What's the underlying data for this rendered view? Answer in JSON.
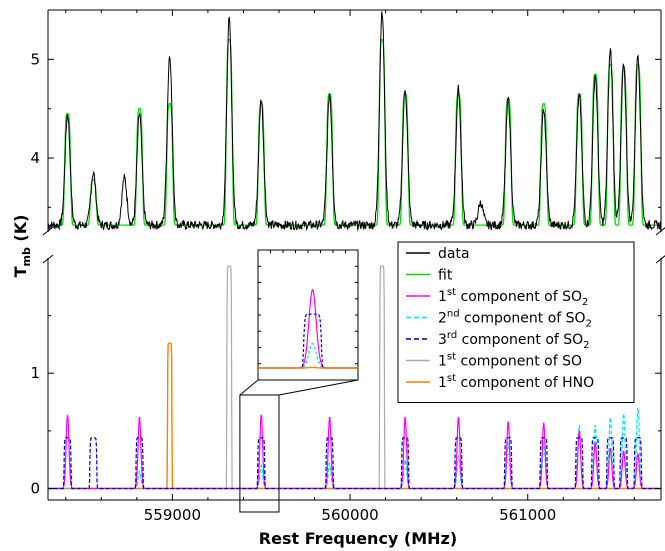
{
  "chart_data": {
    "type": "line",
    "title": "",
    "xlabel": "Rest Frequency (MHz)",
    "ylabel": "T_mb (K)",
    "xlim": [
      558300,
      561750
    ],
    "x_ticks": [
      559000,
      560000,
      561000
    ],
    "x_tick_labels": [
      "559000",
      "560000",
      "561000"
    ],
    "broken_y_axis": true,
    "upper_panel": {
      "ylim": [
        3.25,
        5.5
      ],
      "y_ticks": [
        4,
        5
      ],
      "y_tick_labels": [
        "4",
        "5"
      ]
    },
    "lower_panel": {
      "ylim": [
        -0.1,
        2.0
      ],
      "y_ticks": [
        0,
        1
      ],
      "y_tick_labels": [
        "0",
        "1"
      ]
    },
    "legend": {
      "position": "right",
      "entries": [
        {
          "label": "data",
          "color": "#000000",
          "dash": "solid"
        },
        {
          "label": "fit",
          "color": "#00dd00",
          "dash": "solid"
        },
        {
          "label_main": "1",
          "label_sup": "st",
          "label_rest": " component of SO",
          "label_sub": "2",
          "color": "#ff00ff",
          "dash": "solid"
        },
        {
          "label_main": "2",
          "label_sup": "nd",
          "label_rest": " component of SO",
          "label_sub": "2",
          "color": "#00e5ee",
          "dash": "dashed"
        },
        {
          "label_main": "3",
          "label_sup": "rd",
          "label_rest": " component of SO",
          "label_sub": "2",
          "color": "#0000cc",
          "dash": "dashed"
        },
        {
          "label_main": "1",
          "label_sup": "st",
          "label_rest": " component of SO",
          "label_sub": "",
          "color": "#aaaaaa",
          "dash": "solid"
        },
        {
          "label_main": "1",
          "label_sup": "st",
          "label_rest": " component of HNO",
          "label_sub": "",
          "color": "#ff8000",
          "dash": "solid"
        }
      ]
    },
    "baseline_K": 3.32,
    "lines": [
      {
        "x": 558410,
        "data": 4.45,
        "fit": 4.45,
        "so2_1": 0.64,
        "so2_2": 0.0,
        "so2_3": 0.44
      },
      {
        "x": 558555,
        "data": 3.85,
        "fit": 3.78,
        "so2_1": 0.0,
        "so2_2": 0.0,
        "so2_3": 0.44
      },
      {
        "x": 558730,
        "data": 3.8,
        "fit": 3.32,
        "so2_1": 0.0,
        "so2_2": 0.0,
        "so2_3": 0.0
      },
      {
        "x": 558815,
        "data": 4.45,
        "fit": 4.5,
        "so2_1": 0.62,
        "so2_2": 0.15,
        "so2_3": 0.44
      },
      {
        "x": 558985,
        "data": 5.05,
        "fit": 4.55,
        "so2_1": 0.0,
        "so2_2": 0.0,
        "so2_3": 0.0,
        "hno_1": 1.26
      },
      {
        "x": 559320,
        "data": 5.4,
        "fit": 5.2,
        "so2_1": 0.0,
        "so2_2": 0.0,
        "so2_3": 0.0,
        "so_1": 1.93
      },
      {
        "x": 559500,
        "data": 4.6,
        "fit": 4.55,
        "so2_1": 0.64,
        "so2_2": 0.2,
        "so2_3": 0.44
      },
      {
        "x": 559885,
        "data": 4.65,
        "fit": 4.65,
        "so2_1": 0.62,
        "so2_2": 0.22,
        "so2_3": 0.44
      },
      {
        "x": 560180,
        "data": 5.5,
        "fit": 5.2,
        "so2_1": 0.0,
        "so2_2": 0.0,
        "so2_3": 0.0,
        "so_1": 1.93
      },
      {
        "x": 560310,
        "data": 4.7,
        "fit": 4.65,
        "so2_1": 0.62,
        "so2_2": 0.25,
        "so2_3": 0.44
      },
      {
        "x": 560610,
        "data": 4.7,
        "fit": 4.65,
        "so2_1": 0.62,
        "so2_2": 0.28,
        "so2_3": 0.44
      },
      {
        "x": 560735,
        "data": 3.55,
        "fit": 3.32,
        "so2_1": 0.0,
        "so2_2": 0.0,
        "so2_3": 0.0
      },
      {
        "x": 560890,
        "data": 4.6,
        "fit": 4.6,
        "so2_1": 0.58,
        "so2_2": 0.4,
        "so2_3": 0.44
      },
      {
        "x": 561090,
        "data": 4.5,
        "fit": 4.55,
        "so2_1": 0.57,
        "so2_2": 0.4,
        "so2_3": 0.44
      },
      {
        "x": 561290,
        "data": 4.65,
        "fit": 4.65,
        "so2_1": 0.5,
        "so2_2": 0.55,
        "so2_3": 0.44
      },
      {
        "x": 561380,
        "data": 4.85,
        "fit": 4.85,
        "so2_1": 0.4,
        "so2_2": 0.55,
        "so2_3": 0.44
      },
      {
        "x": 561465,
        "data": 5.1,
        "fit": 4.95,
        "so2_1": 0.35,
        "so2_2": 0.62,
        "so2_3": 0.44
      },
      {
        "x": 561540,
        "data": 4.95,
        "fit": 4.9,
        "so2_1": 0.32,
        "so2_2": 0.65,
        "so2_3": 0.44
      },
      {
        "x": 561620,
        "data": 5.05,
        "fit": 4.95,
        "so2_1": 0.3,
        "so2_2": 0.7,
        "so2_3": 0.44
      }
    ],
    "inset": {
      "x_range": [
        559380,
        559600
      ],
      "y_range": [
        -0.05,
        0.9
      ]
    }
  }
}
